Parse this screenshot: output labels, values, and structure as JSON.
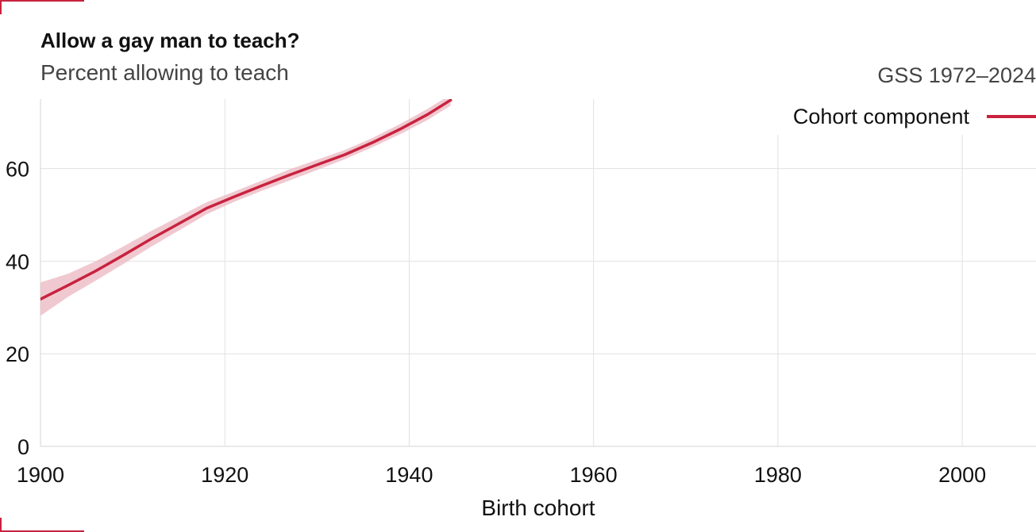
{
  "header": {
    "title": "Allow a gay man to teach?",
    "subtitle": "Percent allowing to teach",
    "source": "GSS 1972–2024"
  },
  "legend": {
    "label": "Cohort component"
  },
  "colors": {
    "line": "#c8223f",
    "band": "#ebb7c0",
    "grid": "#e1e1e1",
    "corner_marks": "#c8223f"
  },
  "chart_data": {
    "type": "line",
    "title": "Allow a gay man to teach?",
    "subtitle": "Percent allowing to teach",
    "xlabel": "Birth cohort",
    "ylabel": "",
    "xlim": [
      1900,
      2008
    ],
    "ylim": [
      0,
      75
    ],
    "x_ticks": [
      1900,
      1920,
      1940,
      1960,
      1980,
      2000
    ],
    "y_ticks": [
      0,
      20,
      40,
      60
    ],
    "grid": true,
    "legend_position": "top-right",
    "series": [
      {
        "name": "Cohort component",
        "x": [
          1900,
          1903,
          1906,
          1909,
          1912,
          1915,
          1918,
          1921,
          1924,
          1927,
          1930,
          1933,
          1936,
          1939,
          1942,
          1944.5
        ],
        "y": [
          31.8,
          34.8,
          37.9,
          41.3,
          44.8,
          48.1,
          51.4,
          53.9,
          56.3,
          58.6,
          60.8,
          63.0,
          65.6,
          68.5,
          71.7,
          74.8
        ],
        "lower": [
          28.2,
          32.3,
          35.8,
          39.4,
          43.1,
          46.6,
          50.1,
          52.8,
          55.2,
          57.4,
          59.7,
          62.0,
          64.6,
          67.4,
          70.5,
          73.6
        ],
        "upper": [
          35.4,
          37.3,
          40.0,
          43.2,
          46.5,
          49.6,
          52.7,
          55.0,
          57.4,
          59.8,
          61.9,
          64.0,
          66.6,
          69.6,
          72.9,
          76.0
        ]
      }
    ]
  }
}
